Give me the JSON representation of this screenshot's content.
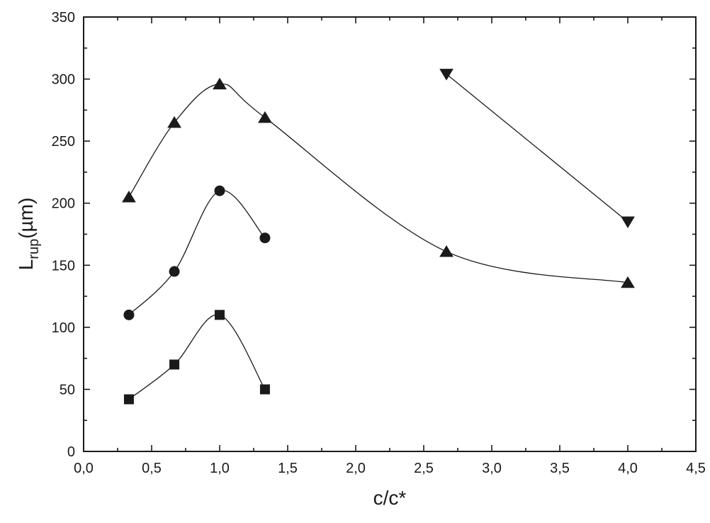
{
  "chart_data": {
    "type": "scatter",
    "title": "",
    "xlabel": "c/c*",
    "ylabel": {
      "main": "L",
      "subscript": "rup",
      "unit": "(µm)"
    },
    "xlim": [
      0.0,
      4.5
    ],
    "ylim": [
      0,
      350
    ],
    "x_ticks": [
      "0,0",
      "0,5",
      "1,0",
      "1,5",
      "2,0",
      "2,5",
      "3,0",
      "3,5",
      "4,0",
      "4,5"
    ],
    "y_ticks": [
      "0",
      "50",
      "100",
      "150",
      "200",
      "250",
      "300",
      "350"
    ],
    "grid": false,
    "legend": "none",
    "series": [
      {
        "marker": "square",
        "x": [
          0.333,
          0.667,
          1.0,
          1.333
        ],
        "y": [
          42,
          70,
          110,
          50
        ]
      },
      {
        "marker": "circle",
        "x": [
          0.333,
          0.667,
          1.0,
          1.333
        ],
        "y": [
          110,
          145,
          210,
          172
        ]
      },
      {
        "marker": "triangle-up",
        "x": [
          0.333,
          0.667,
          1.0,
          1.333,
          2.667,
          4.0
        ],
        "y": [
          205,
          265,
          296,
          269,
          161,
          136
        ]
      },
      {
        "marker": "triangle-down",
        "x": [
          2.667,
          4.0
        ],
        "y": [
          304,
          185
        ]
      }
    ],
    "color": "#1a1a1a"
  }
}
